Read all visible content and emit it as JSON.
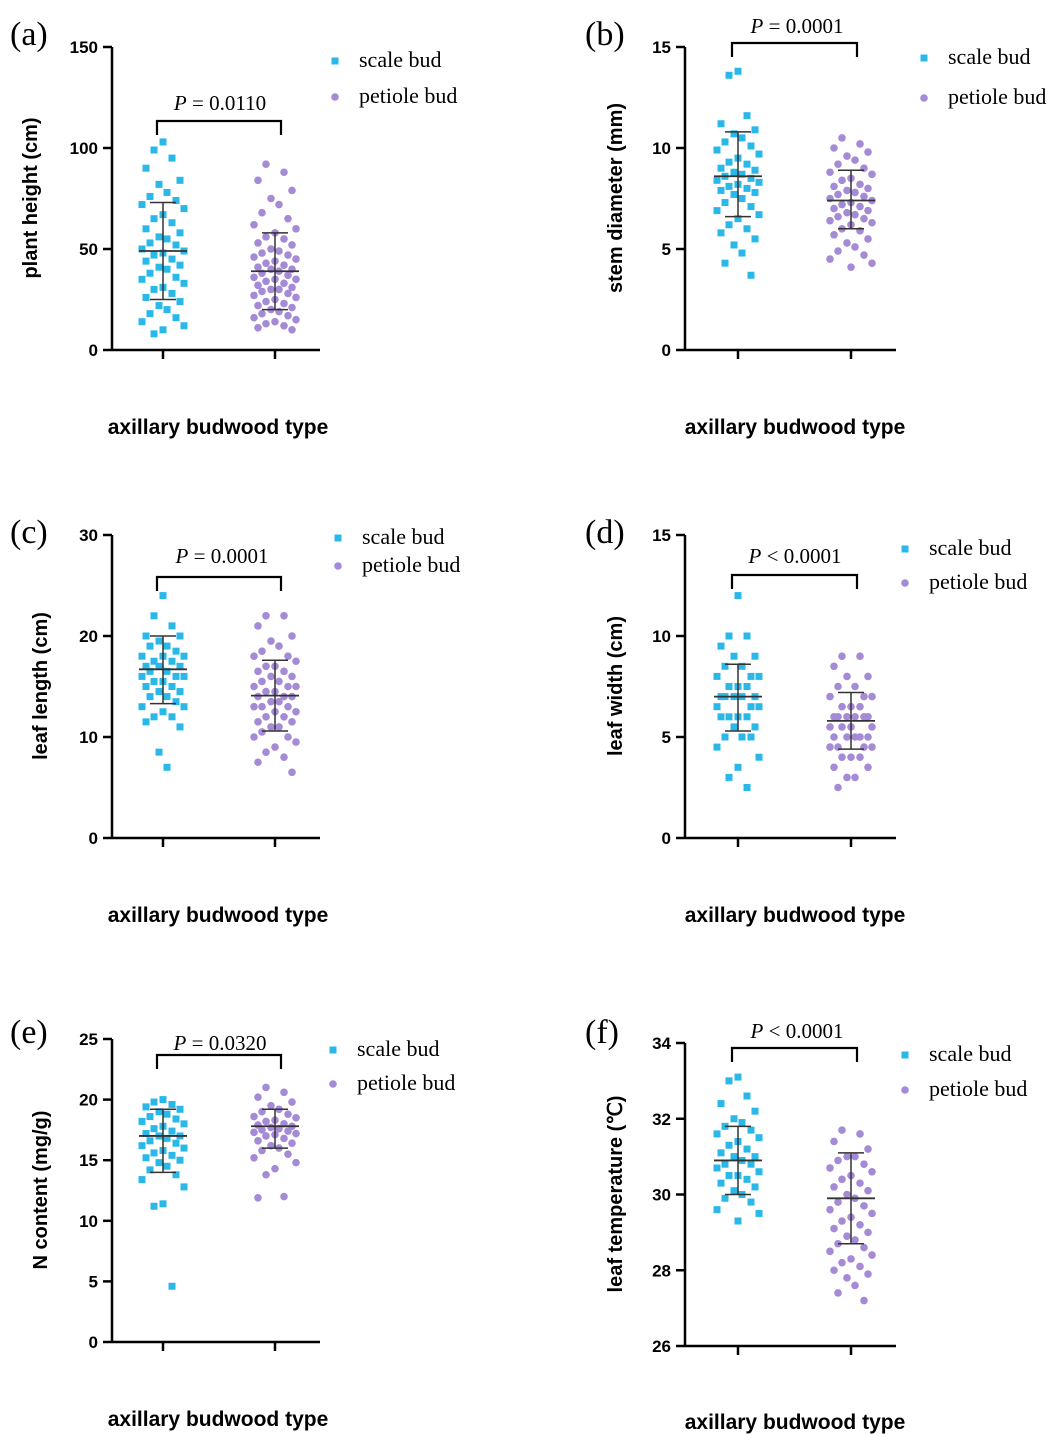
{
  "chart_data": [
    {
      "type": "scatter",
      "panel_label": "(a)",
      "ylabel": "plant height  (cm)",
      "xlabel": "axillary budwood type",
      "ylim": [
        0,
        150
      ],
      "yticks": [
        0,
        50,
        100,
        150
      ],
      "p_value": "= 0.0110",
      "legend": [
        "scale bud",
        "petiole bud"
      ],
      "series": [
        {
          "name": "scale bud",
          "color": "#29b8e8",
          "marker": "square",
          "mean": 49,
          "sd_low": 25,
          "sd_high": 73,
          "values": [
            103,
            99,
            95,
            90,
            84,
            82,
            78,
            76,
            74,
            72,
            70,
            67,
            65,
            63,
            60,
            58,
            56,
            55,
            53,
            52,
            50,
            49,
            48,
            47,
            45,
            44,
            42,
            41,
            40,
            38,
            36,
            35,
            33,
            31,
            30,
            28,
            26,
            24,
            22,
            20,
            18,
            16,
            14,
            12,
            10,
            8
          ]
        },
        {
          "name": "petiole bud",
          "color": "#a58ad6",
          "marker": "circle",
          "mean": 39,
          "sd_low": 20,
          "sd_high": 58,
          "values": [
            92,
            88,
            84,
            79,
            75,
            72,
            68,
            65,
            62,
            60,
            58,
            56,
            55,
            53,
            52,
            50,
            49,
            48,
            47,
            46,
            45,
            44,
            43,
            42,
            41,
            40,
            40,
            39,
            38,
            37,
            36,
            35,
            35,
            34,
            33,
            32,
            31,
            30,
            30,
            29,
            28,
            27,
            26,
            25,
            24,
            23,
            22,
            21,
            20,
            19,
            18,
            17,
            16,
            15,
            14,
            13,
            12,
            11,
            10
          ]
        }
      ]
    },
    {
      "type": "scatter",
      "panel_label": "(b)",
      "ylabel": "stem diameter  (mm)",
      "xlabel": "axillary budwood type",
      "ylim": [
        0,
        15
      ],
      "yticks": [
        0,
        5,
        10,
        15
      ],
      "p_value": "= 0.0001",
      "legend": [
        "scale bud",
        "petiole bud"
      ],
      "series": [
        {
          "name": "scale bud",
          "color": "#29b8e8",
          "marker": "square",
          "mean": 8.6,
          "sd_low": 6.6,
          "sd_high": 10.8,
          "values": [
            13.8,
            13.6,
            11.6,
            11.2,
            10.9,
            10.7,
            10.5,
            10.3,
            10.1,
            9.9,
            9.7,
            9.5,
            9.3,
            9.2,
            9.0,
            8.9,
            8.8,
            8.7,
            8.6,
            8.5,
            8.4,
            8.3,
            8.2,
            8.1,
            8.0,
            7.9,
            7.8,
            7.7,
            7.5,
            7.3,
            7.1,
            6.9,
            6.7,
            6.5,
            6.2,
            6.0,
            5.8,
            5.5,
            5.2,
            4.8,
            4.3,
            3.7
          ]
        },
        {
          "name": "petiole bud",
          "color": "#a58ad6",
          "marker": "circle",
          "mean": 7.4,
          "sd_low": 6.0,
          "sd_high": 8.9,
          "values": [
            10.5,
            10.2,
            10.0,
            9.8,
            9.6,
            9.4,
            9.2,
            9.0,
            8.8,
            8.7,
            8.5,
            8.4,
            8.2,
            8.1,
            8.0,
            7.9,
            7.8,
            7.7,
            7.6,
            7.5,
            7.4,
            7.3,
            7.2,
            7.1,
            7.0,
            6.9,
            6.8,
            6.7,
            6.6,
            6.5,
            6.4,
            6.3,
            6.2,
            6.0,
            5.9,
            5.7,
            5.5,
            5.3,
            5.1,
            4.9,
            4.7,
            4.5,
            4.3,
            4.1
          ]
        }
      ]
    },
    {
      "type": "scatter",
      "panel_label": "(c)",
      "ylabel": "leaf length  (cm)",
      "xlabel": "axillary budwood type",
      "ylim": [
        0,
        30
      ],
      "yticks": [
        0,
        10,
        20,
        30
      ],
      "p_value": "= 0.0001",
      "legend": [
        "scale bud",
        "petiole bud"
      ],
      "series": [
        {
          "name": "scale bud",
          "color": "#29b8e8",
          "marker": "square",
          "mean": 16.7,
          "sd_low": 13.3,
          "sd_high": 20.0,
          "values": [
            24,
            22,
            21,
            20,
            20,
            19.5,
            19,
            19,
            18.5,
            18,
            18,
            18,
            17.5,
            17.5,
            17,
            17,
            17,
            16.5,
            16.5,
            16,
            16,
            16,
            15.5,
            15.5,
            15,
            15,
            14.5,
            14.5,
            14,
            14,
            13.5,
            13,
            13,
            12.5,
            12,
            12,
            11.5,
            11,
            8.5,
            7
          ]
        },
        {
          "name": "petiole bud",
          "color": "#a58ad6",
          "marker": "circle",
          "mean": 14.1,
          "sd_low": 10.6,
          "sd_high": 17.6,
          "values": [
            22,
            22,
            21,
            20,
            19.5,
            19,
            18.5,
            18,
            18,
            17.5,
            17,
            17,
            16.5,
            16.5,
            16,
            16,
            15.5,
            15.5,
            15,
            15,
            15,
            14.5,
            14.5,
            14,
            14,
            14,
            13.5,
            13.5,
            13,
            13,
            13,
            12.5,
            12.5,
            12,
            12,
            11.5,
            11.5,
            11,
            11,
            10.5,
            10,
            10,
            9.5,
            9,
            8.5,
            8,
            7.5,
            6.5
          ]
        }
      ]
    },
    {
      "type": "scatter",
      "panel_label": "(d)",
      "ylabel": "leaf width  (cm)",
      "xlabel": "axillary budwood type",
      "ylim": [
        0,
        15
      ],
      "yticks": [
        0,
        5,
        10,
        15
      ],
      "p_value": "< 0.0001",
      "legend": [
        "scale bud",
        "petiole bud"
      ],
      "series": [
        {
          "name": "scale bud",
          "color": "#29b8e8",
          "marker": "square",
          "mean": 7.0,
          "sd_low": 5.3,
          "sd_high": 8.6,
          "values": [
            12,
            10,
            10,
            9.5,
            9,
            9,
            8.5,
            8.5,
            8,
            8,
            8,
            7.5,
            7.5,
            7.5,
            7,
            7,
            7,
            7,
            7,
            6.5,
            6.5,
            6.5,
            6,
            6,
            6,
            6,
            5.5,
            5.5,
            5,
            5,
            5,
            4.5,
            4,
            3.5,
            3,
            2.5
          ]
        },
        {
          "name": "petiole bud",
          "color": "#a58ad6",
          "marker": "circle",
          "mean": 5.8,
          "sd_low": 4.4,
          "sd_high": 7.2,
          "values": [
            9,
            9,
            8.5,
            8,
            8,
            7.5,
            7.5,
            7,
            7,
            7,
            6.5,
            6.5,
            6.5,
            6,
            6,
            6,
            6,
            6,
            6,
            5.5,
            5.5,
            5.5,
            5.5,
            5,
            5,
            5,
            5,
            5,
            4.5,
            4.5,
            4.5,
            4.5,
            4,
            4,
            4,
            3.5,
            3.5,
            3,
            3,
            2.5
          ]
        }
      ]
    },
    {
      "type": "scatter",
      "panel_label": "(e)",
      "ylabel": "N content (mg/g)",
      "xlabel": "axillary budwood type",
      "ylim": [
        0,
        25
      ],
      "yticks": [
        0,
        5,
        10,
        15,
        20,
        25
      ],
      "p_value": "= 0.0320",
      "legend": [
        "scale bud",
        "petiole bud"
      ],
      "series": [
        {
          "name": "scale bud",
          "color": "#29b8e8",
          "marker": "square",
          "mean": 17.0,
          "sd_low": 14.0,
          "sd_high": 19.2,
          "values": [
            20.0,
            19.8,
            19.6,
            19.4,
            19.2,
            19.0,
            18.8,
            18.6,
            18.4,
            18.2,
            18.0,
            17.8,
            17.6,
            17.4,
            17.2,
            17.0,
            17.0,
            16.8,
            16.6,
            16.4,
            16.2,
            16.0,
            15.8,
            15.6,
            15.4,
            15.2,
            15.0,
            14.8,
            14.5,
            14.2,
            13.8,
            13.4,
            12.8,
            11.4,
            11.2,
            4.6
          ]
        },
        {
          "name": "petiole bud",
          "color": "#a58ad6",
          "marker": "circle",
          "mean": 17.8,
          "sd_low": 16.0,
          "sd_high": 19.2,
          "values": [
            21.0,
            20.6,
            20.2,
            19.8,
            19.5,
            19.2,
            19.0,
            18.8,
            18.6,
            18.5,
            18.3,
            18.2,
            18.0,
            17.9,
            17.8,
            17.7,
            17.6,
            17.5,
            17.4,
            17.3,
            17.2,
            17.1,
            17.0,
            16.8,
            16.6,
            16.4,
            16.2,
            16.0,
            15.8,
            15.5,
            15.2,
            14.8,
            14.3,
            13.8,
            12.0,
            11.9
          ]
        }
      ]
    },
    {
      "type": "scatter",
      "panel_label": "(f)",
      "ylabel": "leaf temperature (℃)",
      "xlabel": "axillary budwood type",
      "ylim": [
        26,
        34
      ],
      "yticks": [
        26,
        28,
        30,
        32,
        34
      ],
      "p_value": "< 0.0001",
      "legend": [
        "scale bud",
        "petiole bud"
      ],
      "series": [
        {
          "name": "scale bud",
          "color": "#29b8e8",
          "marker": "square",
          "mean": 30.9,
          "sd_low": 30.0,
          "sd_high": 31.8,
          "values": [
            33.1,
            33.0,
            32.6,
            32.4,
            32.2,
            32.0,
            31.9,
            31.8,
            31.7,
            31.6,
            31.5,
            31.4,
            31.3,
            31.2,
            31.1,
            31.0,
            31.0,
            30.9,
            30.8,
            30.8,
            30.7,
            30.6,
            30.5,
            30.5,
            30.4,
            30.3,
            30.2,
            30.1,
            30.0,
            29.9,
            29.8,
            29.6,
            29.5,
            29.3
          ]
        },
        {
          "name": "petiole bud",
          "color": "#a58ad6",
          "marker": "circle",
          "mean": 29.9,
          "sd_low": 28.7,
          "sd_high": 31.1,
          "values": [
            31.7,
            31.6,
            31.4,
            31.2,
            31.0,
            31.0,
            30.9,
            30.8,
            30.7,
            30.6,
            30.5,
            30.4,
            30.3,
            30.2,
            30.1,
            30.0,
            29.9,
            29.8,
            29.7,
            29.6,
            29.5,
            29.4,
            29.3,
            29.2,
            29.1,
            29.0,
            28.9,
            28.8,
            28.7,
            28.6,
            28.5,
            28.4,
            28.3,
            28.2,
            28.1,
            28.0,
            27.9,
            27.8,
            27.6,
            27.4,
            27.2
          ]
        }
      ]
    }
  ]
}
